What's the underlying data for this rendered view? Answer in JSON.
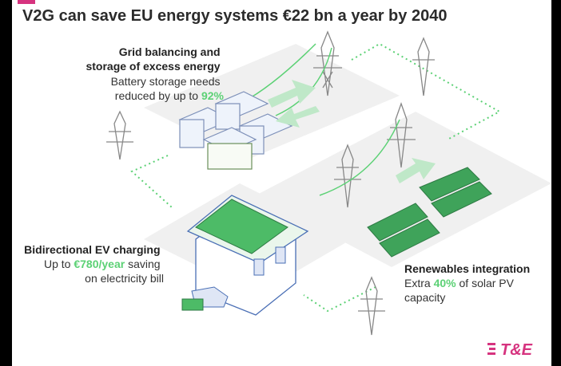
{
  "title": "V2G can save EU energy systems €22 bn a year by 2040",
  "callouts": [
    {
      "heading_lines": [
        "Grid balancing and",
        "storage of excess energy"
      ],
      "body_lines": [
        "Battery storage needs",
        "reduced by up to "
      ],
      "highlight": "92%",
      "after": ""
    },
    {
      "heading_lines": [
        "Bidirectional EV charging"
      ],
      "body_lines": [
        "Up to "
      ],
      "highlight": "€780/year",
      "after": " saving",
      "body_tail": "on electricity bill"
    },
    {
      "heading_lines": [
        "Renewables integration"
      ],
      "body_lines": [
        "Extra "
      ],
      "highlight": "40%",
      "after": " of solar PV",
      "body_tail": "capacity"
    }
  ],
  "logo": "T&E"
}
